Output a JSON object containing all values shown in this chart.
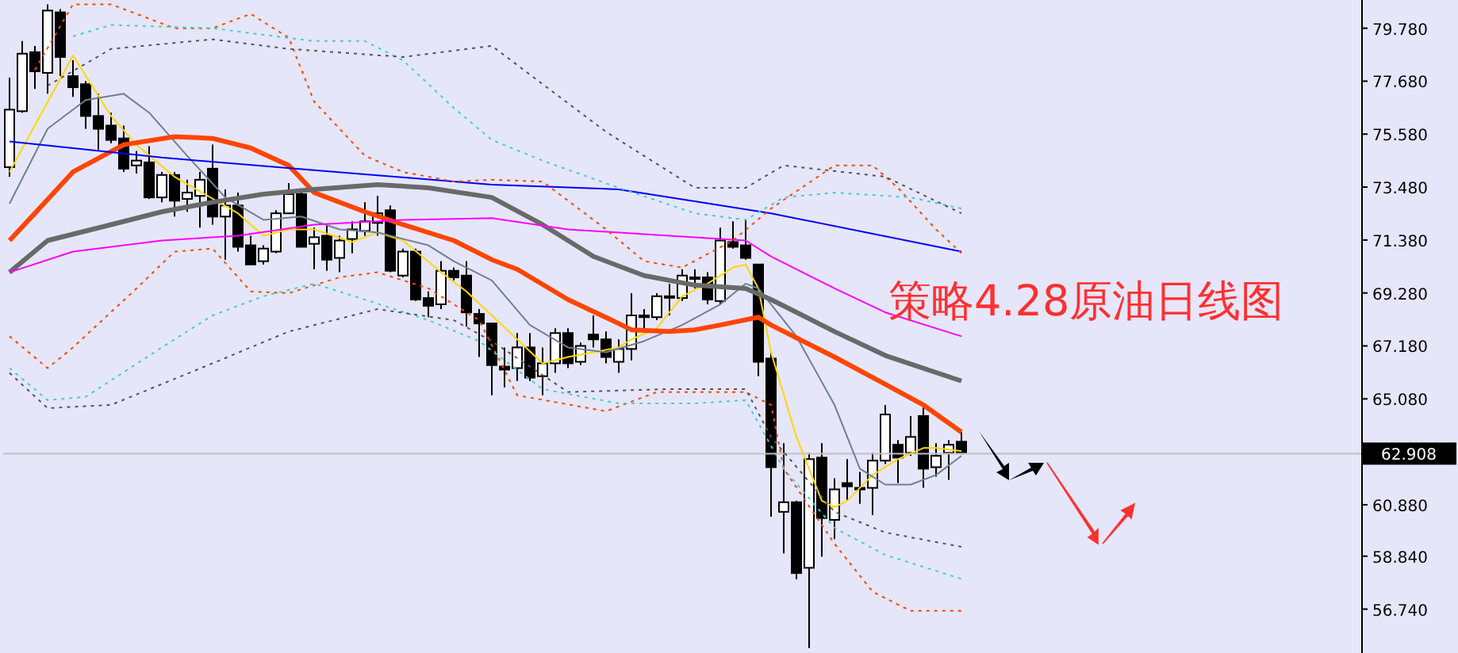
{
  "chart_data": {
    "type": "candlestick",
    "title": "策略4.28原油日线图",
    "categories": [
      null,
      null,
      null,
      null,
      null,
      null,
      null,
      null,
      null,
      null,
      null,
      null,
      null,
      null,
      null,
      null,
      null,
      null,
      null,
      null,
      null,
      null,
      null,
      null,
      null,
      null,
      null,
      null,
      null,
      null,
      null,
      null,
      null,
      null,
      null,
      null,
      null,
      null,
      null,
      null,
      null,
      null,
      null,
      null,
      null,
      null,
      null,
      null,
      null,
      null,
      null,
      null,
      null,
      null,
      null,
      null,
      null,
      null,
      null,
      null,
      null,
      null,
      null,
      null,
      null,
      null,
      null,
      null,
      null,
      null,
      null,
      null,
      null,
      null,
      null,
      null,
      null,
      null,
      null,
      null,
      null,
      null,
      null,
      null,
      null,
      null,
      null,
      null,
      null,
      null,
      null,
      null,
      null,
      null,
      null,
      null,
      null,
      null,
      null,
      null,
      null,
      null,
      null,
      null,
      null,
      null,
      null
    ],
    "ohlc": [
      [
        74.27,
        77.82,
        73.89,
        76.55
      ],
      [
        76.49,
        79.27,
        76.43,
        78.77
      ],
      [
        78.83,
        79.08,
        77.37,
        78.07
      ],
      [
        78.01,
        80.73,
        77.18,
        80.48
      ],
      [
        80.41,
        80.54,
        77.88,
        78.64
      ],
      [
        77.88,
        78.51,
        77.06,
        77.44
      ],
      [
        77.56,
        77.69,
        75.79,
        76.3
      ],
      [
        76.3,
        77.18,
        74.97,
        75.79
      ],
      [
        75.92,
        76.43,
        75.22,
        75.35
      ],
      [
        75.41,
        75.92,
        74.08,
        74.21
      ],
      [
        74.34,
        74.91,
        74.02,
        74.53
      ],
      [
        74.46,
        75.1,
        73.01,
        73.07
      ],
      [
        73.07,
        74.08,
        72.88,
        73.96
      ],
      [
        73.96,
        74.08,
        72.31,
        72.94
      ],
      [
        73.01,
        73.77,
        72.5,
        73.26
      ],
      [
        73.13,
        74.08,
        71.87,
        73.77
      ],
      [
        74.21,
        75.16,
        71.99,
        72.31
      ],
      [
        72.31,
        73.39,
        70.6,
        72.75
      ],
      [
        72.75,
        73.26,
        70.92,
        71.11
      ],
      [
        71.17,
        71.55,
        70.41,
        70.41
      ],
      [
        70.54,
        71.17,
        70.41,
        71.04
      ],
      [
        70.92,
        72.56,
        70.86,
        72.44
      ],
      [
        72.44,
        73.64,
        72.44,
        73.2
      ],
      [
        73.2,
        73.26,
        71.11,
        71.11
      ],
      [
        71.23,
        71.87,
        70.22,
        71.49
      ],
      [
        71.55,
        71.99,
        70.16,
        70.6
      ],
      [
        70.67,
        71.55,
        70.1,
        71.36
      ],
      [
        71.42,
        72.12,
        70.86,
        71.8
      ],
      [
        71.74,
        72.88,
        71.55,
        72.12
      ],
      [
        72.06,
        73.13,
        71.55,
        72.44
      ],
      [
        72.56,
        72.75,
        70.1,
        70.16
      ],
      [
        69.97,
        71.04,
        69.9,
        70.92
      ],
      [
        70.92,
        71.04,
        68.96,
        69.02
      ],
      [
        69.08,
        69.34,
        68.32,
        68.77
      ],
      [
        68.83,
        70.54,
        68.64,
        70.16
      ],
      [
        70.16,
        70.29,
        69.78,
        69.9
      ],
      [
        69.97,
        70.54,
        67.94,
        68.51
      ],
      [
        68.45,
        68.64,
        66.74,
        68.07
      ],
      [
        68.07,
        68.07,
        65.22,
        66.42
      ],
      [
        66.36,
        67.12,
        65.54,
        66.24
      ],
      [
        66.3,
        67.69,
        65.79,
        67.12
      ],
      [
        67.12,
        67.69,
        65.79,
        65.92
      ],
      [
        65.98,
        67.12,
        65.22,
        66.49
      ],
      [
        66.49,
        67.88,
        66.11,
        67.69
      ],
      [
        67.69,
        67.88,
        66.3,
        66.49
      ],
      [
        66.55,
        67.31,
        66.42,
        67.18
      ],
      [
        67.63,
        68.39,
        67.12,
        67.44
      ],
      [
        67.44,
        67.75,
        66.49,
        66.74
      ],
      [
        66.55,
        67.44,
        66.11,
        67.06
      ],
      [
        67.06,
        69.27,
        66.61,
        68.39
      ],
      [
        68.39,
        68.64,
        67.69,
        68.32
      ],
      [
        68.32,
        69.27,
        68.2,
        69.15
      ],
      [
        69.15,
        69.65,
        68.39,
        69.15
      ],
      [
        69.08,
        70.22,
        68.96,
        69.97
      ],
      [
        69.9,
        70.22,
        69.46,
        69.9
      ],
      [
        69.9,
        70.1,
        68.83,
        69.02
      ],
      [
        68.96,
        71.87,
        68.83,
        71.36
      ],
      [
        71.3,
        72.12,
        71.04,
        71.11
      ],
      [
        71.17,
        72.18,
        70.6,
        70.67
      ],
      [
        70.41,
        70.41,
        65.98,
        66.55
      ],
      [
        66.68,
        66.93,
        60.41,
        62.37
      ],
      [
        60.6,
        63.32,
        58.95,
        60.98
      ],
      [
        60.98,
        61.04,
        57.92,
        58.17
      ],
      [
        58.38,
        62.94,
        55.2,
        62.69
      ],
      [
        62.75,
        63.32,
        58.82,
        60.35
      ],
      [
        60.28,
        61.93,
        59.52,
        61.49
      ],
      [
        61.74,
        62.69,
        61.04,
        61.61
      ],
      [
        61.55,
        62.18,
        60.92,
        61.55
      ],
      [
        61.55,
        62.94,
        60.47,
        62.63
      ],
      [
        62.63,
        64.84,
        62.5,
        64.46
      ],
      [
        63.26,
        63.45,
        61.74,
        62.75
      ],
      [
        62.94,
        64.4,
        62.82,
        63.57
      ],
      [
        64.4,
        64.84,
        61.55,
        62.31
      ],
      [
        62.37,
        63.32,
        61.99,
        62.82
      ],
      [
        62.94,
        63.45,
        61.87,
        63.26
      ],
      [
        63.38,
        63.76,
        62.88,
        62.94
      ],
      null,
      null,
      null,
      null,
      null,
      null,
      null,
      null,
      null,
      null,
      null,
      null,
      null,
      null,
      null,
      null,
      null,
      null,
      null,
      null,
      null,
      null,
      null,
      null,
      null,
      null,
      null,
      null,
      null,
      null,
      null
    ],
    "series": [
      {
        "type": "line",
        "color": "#ffd700",
        "values": [
          74.08,
          null,
          null,
          null,
          null,
          78.7,
          null,
          null,
          76.3,
          null,
          75.16,
          null,
          null,
          73.89,
          null,
          null,
          null,
          null,
          72.44,
          null,
          71.55,
          null,
          71.8,
          null,
          71.8,
          null,
          null,
          71.3,
          null,
          71.68,
          null,
          71.36,
          null,
          null,
          70.1,
          null,
          69.34,
          null,
          68.39,
          null,
          null,
          null,
          66.49,
          null,
          66.74,
          null,
          null,
          null,
          67.12,
          67.44,
          null,
          67.88,
          null,
          69.15,
          null,
          69.65,
          null,
          70.29,
          70.41,
          69.46,
          66.93,
          null,
          63.57,
          null,
          61.04,
          60.79,
          61.04,
          null,
          62.06,
          null,
          62.69,
          null,
          63.13,
          63.13,
          null,
          63.01,
          null,
          null,
          null,
          null,
          null,
          null,
          null,
          null,
          null,
          null,
          null,
          null,
          null,
          null,
          null,
          null,
          null,
          null,
          null,
          null,
          null,
          null,
          null,
          null,
          null,
          null,
          null,
          null,
          null,
          null,
          null
        ]
      },
      {
        "type": "line",
        "color": "#708090",
        "values": [
          72.82,
          null,
          null,
          75.79,
          null,
          null,
          76.93,
          null,
          null,
          77.18,
          null,
          76.43,
          null,
          null,
          74.72,
          null,
          null,
          73.07,
          null,
          null,
          72.18,
          null,
          null,
          72.31,
          null,
          null,
          71.8,
          null,
          null,
          71.68,
          null,
          null,
          null,
          71.17,
          null,
          70.54,
          null,
          null,
          69.78,
          null,
          null,
          68.01,
          null,
          null,
          67.12,
          null,
          null,
          66.93,
          null,
          null,
          67.37,
          null,
          null,
          68.01,
          null,
          null,
          68.83,
          null,
          69.65,
          69.46,
          null,
          null,
          67.56,
          null,
          null,
          64.84,
          null,
          62.31,
          null,
          61.68,
          null,
          61.68,
          null,
          62.06,
          null,
          62.82,
          null,
          null,
          null,
          null,
          null,
          null,
          null,
          null,
          null,
          null,
          null,
          null,
          null,
          null,
          null,
          null,
          null,
          null,
          null,
          null,
          null,
          null,
          null,
          null,
          null,
          null,
          null,
          null,
          null,
          null,
          null
        ]
      },
      {
        "type": "line",
        "color": "#ff4500",
        "values": [
          71.36,
          null,
          72.44,
          null,
          null,
          74.08,
          null,
          null,
          null,
          75.16,
          null,
          null,
          null,
          75.48,
          null,
          null,
          75.41,
          null,
          null,
          75.03,
          null,
          null,
          74.34,
          null,
          73.26,
          null,
          null,
          null,
          72.5,
          null,
          null,
          71.99,
          null,
          null,
          null,
          71.36,
          null,
          null,
          70.6,
          null,
          70.22,
          null,
          null,
          null,
          69.02,
          null,
          null,
          null,
          68.07,
          67.82,
          null,
          null,
          67.75,
          null,
          67.82,
          null,
          68.01,
          null,
          null,
          68.32,
          68.01,
          null,
          null,
          null,
          null,
          66.74,
          null,
          null,
          null,
          65.66,
          null,
          null,
          64.84,
          null,
          null,
          63.76,
          null,
          null,
          null,
          null,
          null,
          null,
          null,
          null,
          null,
          null,
          null,
          null,
          null,
          null,
          null,
          null,
          null,
          null,
          null,
          null,
          null,
          null,
          null,
          null,
          null,
          null,
          null,
          null,
          null,
          null,
          null
        ]
      },
      {
        "type": "line",
        "color": "#696969",
        "values": [
          70.1,
          null,
          null,
          71.36,
          null,
          null,
          null,
          null,
          71.99,
          null,
          null,
          null,
          72.5,
          null,
          null,
          null,
          72.88,
          null,
          null,
          null,
          73.2,
          null,
          null,
          null,
          73.39,
          null,
          null,
          null,
          null,
          73.58,
          null,
          null,
          null,
          73.45,
          null,
          null,
          null,
          null,
          73.07,
          null,
          null,
          null,
          71.99,
          null,
          null,
          null,
          70.73,
          null,
          null,
          null,
          69.97,
          null,
          null,
          null,
          69.59,
          null,
          null,
          null,
          69.46,
          null,
          69.02,
          null,
          null,
          null,
          null,
          67.75,
          null,
          null,
          null,
          66.8,
          null,
          null,
          null,
          null,
          null,
          65.79,
          null,
          null,
          null,
          null,
          null,
          null,
          null,
          null,
          null,
          null,
          null,
          null,
          null,
          null,
          null,
          null,
          null,
          null,
          null,
          null,
          null,
          null,
          null,
          null,
          null,
          null,
          null,
          null,
          null,
          null,
          null
        ]
      },
      {
        "type": "line",
        "color": "#ff00ff",
        "values": [
          70.1,
          null,
          null,
          null,
          null,
          70.92,
          null,
          null,
          null,
          null,
          null,
          null,
          71.36,
          null,
          null,
          null,
          null,
          null,
          71.55,
          null,
          null,
          null,
          null,
          null,
          71.99,
          null,
          null,
          null,
          null,
          null,
          null,
          72.18,
          null,
          null,
          null,
          null,
          null,
          null,
          72.25,
          null,
          null,
          null,
          null,
          null,
          71.8,
          null,
          null,
          null,
          null,
          null,
          null,
          null,
          71.55,
          null,
          null,
          null,
          null,
          null,
          71.36,
          null,
          70.73,
          null,
          null,
          null,
          null,
          69.46,
          null,
          null,
          null,
          68.51,
          null,
          null,
          null,
          null,
          null,
          67.56,
          null,
          null,
          null,
          null,
          null,
          null,
          null,
          null,
          null,
          null,
          null,
          null,
          null,
          null,
          null,
          null,
          null,
          null,
          null,
          null,
          null,
          null,
          null,
          null,
          null,
          null,
          null,
          null,
          null,
          null,
          null
        ]
      },
      {
        "type": "line",
        "color": "#0000ff",
        "values": [
          75.29,
          null,
          null,
          null,
          null,
          null,
          null,
          null,
          null,
          null,
          null,
          null,
          74.65,
          null,
          null,
          null,
          null,
          null,
          null,
          null,
          null,
          null,
          null,
          null,
          74.15,
          null,
          null,
          null,
          null,
          null,
          null,
          null,
          null,
          null,
          null,
          null,
          null,
          null,
          73.58,
          null,
          null,
          null,
          null,
          null,
          null,
          null,
          null,
          null,
          73.39,
          null,
          null,
          null,
          null,
          null,
          null,
          null,
          null,
          null,
          null,
          null,
          72.44,
          null,
          null,
          null,
          null,
          null,
          null,
          null,
          null,
          null,
          null,
          null,
          null,
          null,
          null,
          70.92,
          null,
          null,
          null,
          null,
          null,
          null,
          null,
          null,
          null,
          null,
          null,
          null,
          null,
          null,
          null,
          null,
          null,
          null,
          null,
          null,
          null,
          null,
          null,
          null,
          null,
          null,
          null,
          null,
          null,
          null,
          null
        ]
      },
      {
        "type": "line",
        "line_style": "dotted",
        "color": "#ff4500",
        "values": [
          null,
          null,
          78.13,
          null,
          null,
          80.73,
          null,
          null,
          80.73,
          null,
          null,
          null,
          null,
          79.78,
          null,
          null,
          79.78,
          null,
          null,
          80.35,
          null,
          null,
          79.4,
          null,
          76.87,
          null,
          null,
          null,
          74.72,
          null,
          null,
          74.08,
          null,
          null,
          null,
          73.7,
          null,
          null,
          73.77,
          null,
          null,
          null,
          73.7,
          null,
          null,
          null,
          null,
          71.8,
          null,
          null,
          70.54,
          null,
          null,
          70.29,
          null,
          null,
          null,
          71.36,
          null,
          null,
          72.63,
          null,
          null,
          null,
          null,
          74.34,
          null,
          null,
          74.34,
          null,
          73.45,
          null,
          null,
          71.8,
          null,
          70.86,
          null,
          null,
          null,
          null,
          null,
          null,
          null,
          null,
          null,
          null,
          null,
          null,
          null,
          null,
          null,
          null,
          null,
          null,
          null,
          null,
          null,
          null,
          null,
          null,
          null,
          null,
          null,
          null,
          null,
          null,
          null
        ]
      },
      {
        "type": "line",
        "line_style": "dotted",
        "color": "#ff4500",
        "values": [
          67.56,
          null,
          null,
          66.3,
          null,
          67.12,
          null,
          null,
          null,
          null,
          69.46,
          null,
          null,
          70.92,
          null,
          null,
          71.04,
          null,
          null,
          69.34,
          null,
          null,
          69.27,
          null,
          null,
          null,
          69.9,
          null,
          null,
          70.1,
          null,
          null,
          null,
          69.46,
          null,
          null,
          null,
          68.2,
          null,
          null,
          65.22,
          null,
          null,
          null,
          null,
          null,
          null,
          64.59,
          null,
          null,
          null,
          65.35,
          null,
          null,
          null,
          null,
          null,
          null,
          65.35,
          null,
          64.84,
          62.31,
          null,
          null,
          null,
          59.33,
          null,
          null,
          57.43,
          null,
          null,
          56.67,
          null,
          null,
          null,
          56.67,
          null,
          null,
          null,
          null,
          null,
          null,
          null,
          null,
          null,
          null,
          null,
          null,
          null,
          null,
          null,
          null,
          null,
          null,
          null,
          null,
          null,
          null,
          null,
          null,
          null,
          null,
          null,
          null,
          null,
          null,
          null
        ]
      },
      {
        "type": "line",
        "line_style": "dotted",
        "color": "#40d0d0",
        "values": [
          null,
          null,
          null,
          null,
          null,
          79.46,
          null,
          null,
          79.91,
          null,
          null,
          null,
          null,
          null,
          null,
          null,
          79.78,
          null,
          null,
          null,
          null,
          null,
          null,
          null,
          79.27,
          null,
          null,
          null,
          79.27,
          null,
          null,
          78.51,
          null,
          null,
          null,
          76.62,
          null,
          null,
          75.35,
          null,
          null,
          null,
          74.53,
          null,
          null,
          null,
          null,
          null,
          73.45,
          null,
          null,
          null,
          null,
          null,
          72.44,
          null,
          null,
          null,
          72.18,
          null,
          null,
          73.07,
          null,
          null,
          null,
          73.26,
          null,
          null,
          null,
          null,
          null,
          73.07,
          null,
          null,
          null,
          72.63,
          null,
          null,
          null,
          null,
          null,
          null,
          null,
          null,
          null,
          null,
          null,
          null,
          null,
          null,
          null,
          null,
          null,
          null,
          null,
          null,
          null,
          null,
          null,
          null,
          null,
          null,
          null,
          null,
          null,
          null,
          null
        ]
      },
      {
        "type": "line",
        "line_style": "dotted",
        "color": "#40d0d0",
        "values": [
          66.3,
          null,
          null,
          65.03,
          null,
          null,
          65.16,
          null,
          null,
          null,
          null,
          null,
          67.12,
          null,
          null,
          null,
          68.39,
          null,
          null,
          null,
          69.15,
          null,
          null,
          null,
          69.65,
          null,
          null,
          null,
          69.02,
          null,
          null,
          null,
          null,
          68.2,
          null,
          null,
          null,
          67.37,
          null,
          null,
          null,
          null,
          65.47,
          null,
          null,
          null,
          null,
          null,
          64.9,
          null,
          null,
          null,
          null,
          null,
          64.9,
          null,
          null,
          null,
          65.03,
          null,
          null,
          62.31,
          null,
          null,
          null,
          59.96,
          null,
          null,
          null,
          58.89,
          null,
          null,
          null,
          null,
          null,
          57.94,
          null,
          null,
          null,
          null,
          null,
          null,
          null,
          null,
          null,
          null,
          null,
          null,
          null,
          null,
          null,
          null,
          null,
          null,
          null,
          null,
          null,
          null,
          null,
          null,
          null,
          null,
          null,
          null,
          null,
          null,
          null
        ]
      },
      {
        "type": "line",
        "line_style": "dotted",
        "color": "#555555",
        "values": [
          null,
          null,
          null,
          77.5,
          null,
          null,
          null,
          null,
          78.96,
          null,
          null,
          null,
          null,
          null,
          null,
          null,
          79.34,
          null,
          null,
          null,
          null,
          null,
          78.96,
          null,
          null,
          null,
          null,
          null,
          null,
          null,
          null,
          78.64,
          null,
          null,
          null,
          null,
          null,
          null,
          79.08,
          null,
          null,
          null,
          null,
          null,
          null,
          null,
          null,
          75.67,
          null,
          null,
          null,
          null,
          null,
          null,
          73.45,
          null,
          null,
          null,
          73.45,
          null,
          null,
          74.34,
          null,
          null,
          null,
          null,
          null,
          null,
          null,
          73.89,
          null,
          null,
          null,
          null,
          null,
          72.44,
          null,
          null,
          null,
          null,
          null,
          null,
          null,
          null,
          null,
          null,
          null,
          null,
          null,
          null,
          null,
          null,
          null,
          null,
          null,
          null,
          null,
          null,
          null,
          null,
          null,
          null,
          null,
          null,
          null,
          null,
          null
        ]
      },
      {
        "type": "line",
        "line_style": "dotted",
        "color": "#555555",
        "values": [
          66.11,
          null,
          null,
          64.71,
          null,
          null,
          null,
          null,
          64.84,
          null,
          null,
          null,
          null,
          null,
          null,
          null,
          66.49,
          null,
          null,
          null,
          null,
          null,
          67.75,
          null,
          null,
          null,
          null,
          null,
          null,
          68.64,
          null,
          null,
          null,
          null,
          null,
          68.2,
          null,
          null,
          67.37,
          null,
          null,
          null,
          null,
          null,
          65.35,
          null,
          null,
          null,
          null,
          null,
          null,
          null,
          65.47,
          null,
          null,
          null,
          null,
          null,
          65.47,
          null,
          63.57,
          null,
          null,
          null,
          null,
          60.6,
          null,
          null,
          null,
          59.78,
          null,
          null,
          null,
          null,
          null,
          59.21,
          null,
          null,
          null,
          null,
          null,
          null,
          null,
          null,
          null,
          null,
          null,
          null,
          null,
          null,
          null,
          null,
          null,
          null,
          null,
          null,
          null,
          null,
          null,
          null,
          null,
          null,
          null,
          null,
          null,
          null,
          null
        ]
      }
    ],
    "ylim": [
      55.0,
      80.9
    ],
    "yticks": [
      {
        "value": 79.78,
        "label": "79.780"
      },
      {
        "value": 77.68,
        "label": "77.680"
      },
      {
        "value": 75.58,
        "label": "75.580"
      },
      {
        "value": 73.48,
        "label": "73.480"
      },
      {
        "value": 71.38,
        "label": "71.380"
      },
      {
        "value": 69.28,
        "label": "69.280"
      },
      {
        "value": 67.18,
        "label": "67.180"
      },
      {
        "value": 65.08,
        "label": "65.080"
      },
      {
        "value": 60.88,
        "label": "60.880"
      },
      {
        "value": 58.84,
        "label": "58.840"
      },
      {
        "value": 56.74,
        "label": "56.740"
      }
    ],
    "tick_labels": "y",
    "ref_lines": [
      {
        "axis": "y",
        "value": 62.908,
        "label": "62.908",
        "color": "#c0c0c0"
      }
    ]
  }
}
